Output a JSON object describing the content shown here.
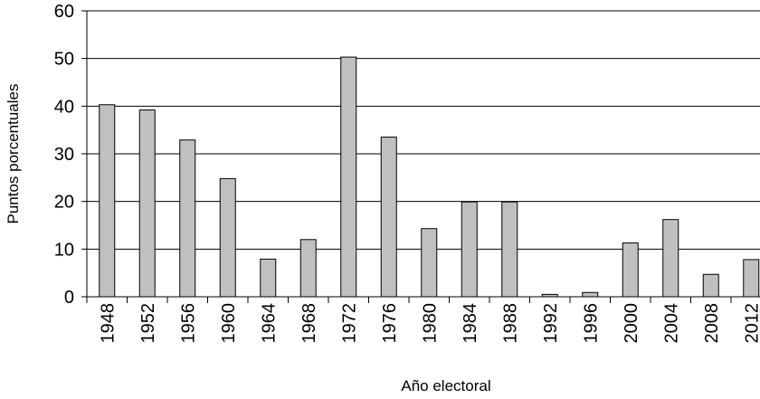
{
  "chart_data": {
    "type": "bar",
    "title": "",
    "xlabel": "Año electoral",
    "ylabel": "Puntos porcentuales",
    "ylim": [
      0,
      60
    ],
    "yticks": [
      0,
      10,
      20,
      30,
      40,
      50,
      60
    ],
    "grid": true,
    "categories": [
      "1948",
      "1952",
      "1956",
      "1960",
      "1964",
      "1968",
      "1972",
      "1976",
      "1980",
      "1984",
      "1988",
      "1992",
      "1996",
      "2000",
      "2004",
      "2008",
      "2012"
    ],
    "values": [
      40.3,
      39.2,
      32.9,
      24.8,
      7.9,
      12.0,
      50.3,
      33.5,
      14.3,
      19.9,
      19.9,
      0.5,
      0.9,
      11.3,
      16.2,
      4.7,
      7.8
    ],
    "colors": {
      "bar": "#c0c0c0",
      "bar_stroke": "#000000",
      "grid": "#000000",
      "background": "#ffffff"
    }
  }
}
